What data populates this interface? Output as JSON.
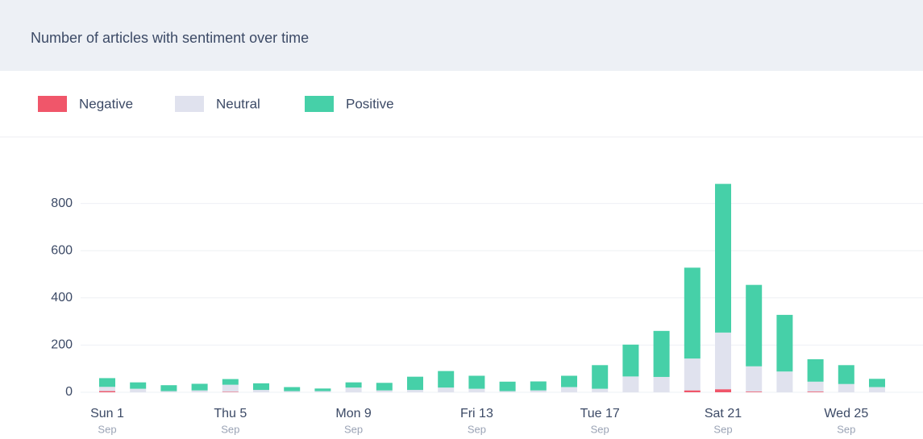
{
  "chart_data": {
    "type": "stacked-bar",
    "title": "Number of articles with sentiment over time",
    "categories": [
      "Sun 1",
      null,
      null,
      null,
      "Thu 5",
      null,
      null,
      null,
      "Mon 9",
      null,
      null,
      null,
      "Fri 13",
      null,
      null,
      null,
      "Tue 17",
      null,
      null,
      null,
      "Sat 21",
      null,
      null,
      null,
      "Wed 25",
      null
    ],
    "category_sublabels": [
      "Sep",
      null,
      null,
      null,
      "Sep",
      null,
      null,
      null,
      "Sep",
      null,
      null,
      null,
      "Sep",
      null,
      null,
      null,
      "Sep",
      null,
      null,
      null,
      "Sep",
      null,
      null,
      null,
      "Sep",
      null
    ],
    "series": [
      {
        "name": "Negative",
        "color": "#f0566a",
        "values": [
          5,
          0,
          0,
          0,
          2,
          0,
          0,
          0,
          0,
          0,
          0,
          0,
          0,
          0,
          0,
          0,
          0,
          0,
          0,
          8,
          13,
          3,
          0,
          3,
          0,
          0
        ]
      },
      {
        "name": "Neutral",
        "color": "#e0e2ee",
        "values": [
          18,
          15,
          5,
          8,
          30,
          10,
          5,
          5,
          20,
          8,
          10,
          20,
          15,
          5,
          8,
          22,
          15,
          67,
          65,
          135,
          240,
          107,
          88,
          42,
          35,
          22
        ]
      },
      {
        "name": "Positive",
        "color": "#46d0a8",
        "values": [
          37,
          27,
          25,
          28,
          24,
          28,
          17,
          11,
          22,
          32,
          56,
          70,
          55,
          40,
          38,
          48,
          100,
          135,
          195,
          385,
          630,
          345,
          240,
          95,
          80,
          35
        ]
      }
    ],
    "ylim": [
      0,
      1000
    ],
    "yticks": [
      0,
      200,
      400,
      600,
      800
    ],
    "grid": true
  }
}
